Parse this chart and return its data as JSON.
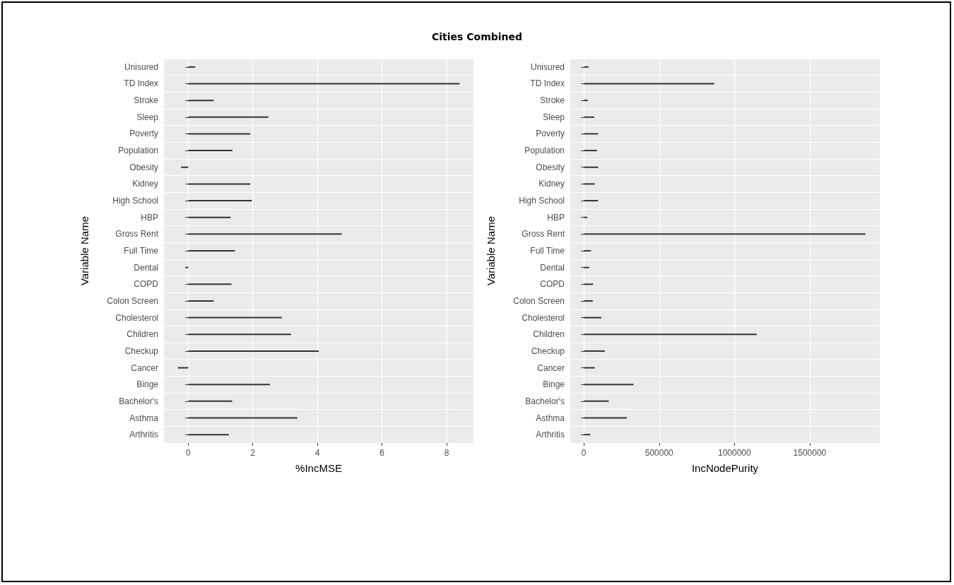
{
  "chart_data": [
    {
      "type": "bar",
      "title": "Cities Combined",
      "orientation": "horizontal",
      "xlabel": "%IncMSE",
      "ylabel": "Variable Name",
      "categories": [
        "Unisured",
        "TD Index",
        "Stroke",
        "Sleep",
        "Poverty",
        "Population",
        "Obesity",
        "Kidney",
        "High School",
        "HBP",
        "Gross Rent",
        "Full Time",
        "Dental",
        "COPD",
        "Colon Screen",
        "Cholesterol",
        "Children",
        "Checkup",
        "Cancer",
        "Binge",
        "Bachelor's",
        "Asthma",
        "Arthritis"
      ],
      "values": [
        0.22,
        8.4,
        0.79,
        2.48,
        1.92,
        1.37,
        -0.22,
        1.92,
        1.97,
        1.31,
        4.75,
        1.45,
        -0.08,
        1.34,
        0.79,
        2.9,
        3.18,
        4.04,
        -0.32,
        2.53,
        1.36,
        3.38,
        1.26
      ],
      "color": "#333333",
      "xlim": [
        -0.75,
        8.83
      ],
      "xticks": [
        0,
        2,
        4,
        6,
        8
      ],
      "grid": true
    },
    {
      "type": "bar",
      "orientation": "horizontal",
      "xlabel": "IncNodePurity",
      "ylabel": "Variable Name",
      "categories": [
        "Unisured",
        "TD Index",
        "Stroke",
        "Sleep",
        "Poverty",
        "Population",
        "Obesity",
        "Kidney",
        "High School",
        "HBP",
        "Gross Rent",
        "Full Time",
        "Dental",
        "COPD",
        "Colon Screen",
        "Cholesterol",
        "Children",
        "Checkup",
        "Cancer",
        "Binge",
        "Bachelor's",
        "Asthma",
        "Arthritis"
      ],
      "values": [
        31000,
        866000,
        26000,
        69000,
        95000,
        87000,
        95000,
        73000,
        94000,
        23000,
        1870000,
        47000,
        35000,
        61000,
        59000,
        116000,
        1148000,
        139000,
        73000,
        330000,
        165000,
        285000,
        43000
      ],
      "color": "#333333",
      "xlim": [
        -90000,
        1965000
      ],
      "xticks": [
        0,
        500000,
        1000000,
        1500000
      ],
      "grid": true
    }
  ]
}
